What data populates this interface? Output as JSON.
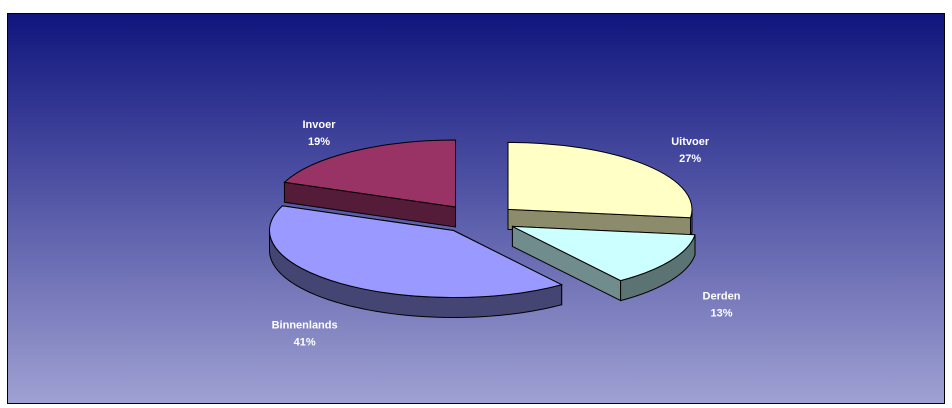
{
  "chart_data": {
    "type": "pie",
    "variant": "3d-exploded",
    "title": "",
    "slices": [
      {
        "name": "Uitvoer",
        "value": 27,
        "label": "27%",
        "color": "#ffffc6"
      },
      {
        "name": "Derden",
        "value": 13,
        "label": "13%",
        "color": "#ccffff"
      },
      {
        "name": "Binnenlands",
        "value": 41,
        "label": "41%",
        "color": "#9999ff"
      },
      {
        "name": "Invoer",
        "value": 19,
        "label": "19%",
        "color": "#993366"
      }
    ],
    "legend": "none",
    "data_labels": "name and percent",
    "background": {
      "top": "#10157e",
      "bottom": "#9fa0d2"
    }
  }
}
